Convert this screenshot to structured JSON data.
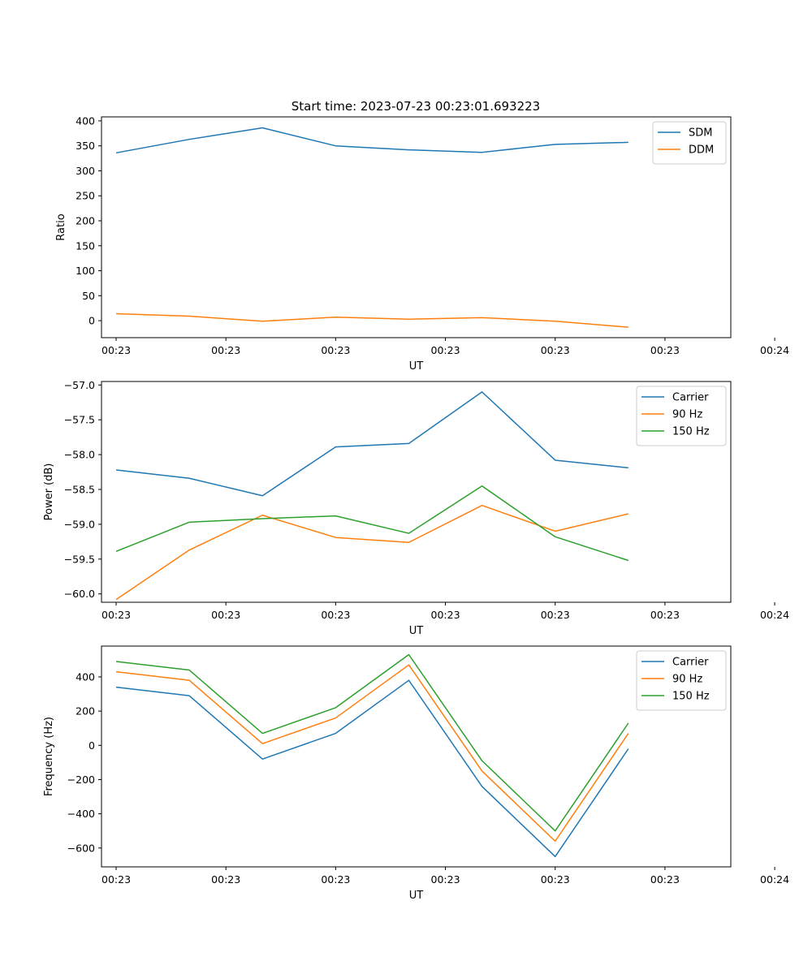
{
  "figure": {
    "title": "Start time: 2023-07-23 00:23:01.693223"
  },
  "chart_data": [
    {
      "type": "line",
      "xlabel": "UT",
      "ylabel": "Ratio",
      "x": [
        1,
        2,
        3,
        4,
        5,
        6,
        7,
        8
      ],
      "xlim": [
        0.8,
        9.4
      ],
      "xticks": [
        1,
        2.5,
        4,
        5.5,
        7,
        8.5,
        10
      ],
      "xtick_labels": [
        "00:23",
        "00:23",
        "00:23",
        "00:23",
        "00:23",
        "00:23",
        "00:24"
      ],
      "ylim": [
        -34,
        408
      ],
      "yticks": [
        0,
        50,
        100,
        150,
        200,
        250,
        300,
        350,
        400
      ],
      "ytick_labels": [
        "0",
        "50",
        "100",
        "150",
        "200",
        "250",
        "300",
        "350",
        "400"
      ],
      "legend_position": "top-right",
      "series": [
        {
          "name": "SDM",
          "color": "#1f77b4",
          "values": [
            336,
            363,
            386,
            350,
            342,
            337,
            353,
            357
          ]
        },
        {
          "name": "DDM",
          "color": "#ff7f0e",
          "values": [
            14,
            9,
            -1,
            7,
            3,
            6,
            -1,
            -13
          ]
        }
      ]
    },
    {
      "type": "line",
      "xlabel": "UT",
      "ylabel": "Power (dB)",
      "x": [
        1,
        2,
        3,
        4,
        5,
        6,
        7,
        8
      ],
      "xlim": [
        0.8,
        9.4
      ],
      "xticks": [
        1,
        2.5,
        4,
        5.5,
        7,
        8.5,
        10
      ],
      "xtick_labels": [
        "00:23",
        "00:23",
        "00:23",
        "00:23",
        "00:23",
        "00:23",
        "00:24"
      ],
      "ylim": [
        -60.12,
        -56.95
      ],
      "yticks": [
        -60.0,
        -59.5,
        -59.0,
        -58.5,
        -58.0,
        -57.5,
        -57.0
      ],
      "ytick_labels": [
        "−60.0",
        "−59.5",
        "−59.0",
        "−58.5",
        "−58.0",
        "−57.5",
        "−57.0"
      ],
      "legend_position": "top-right",
      "series": [
        {
          "name": "Carrier",
          "color": "#1f77b4",
          "values": [
            -58.22,
            -58.34,
            -58.59,
            -57.89,
            -57.84,
            -57.1,
            -58.08,
            -58.19
          ]
        },
        {
          "name": "90 Hz",
          "color": "#ff7f0e",
          "values": [
            -60.08,
            -59.37,
            -58.87,
            -59.19,
            -59.26,
            -58.73,
            -59.1,
            -58.85
          ]
        },
        {
          "name": "150 Hz",
          "color": "#2ca02c",
          "values": [
            -59.39,
            -58.97,
            -58.92,
            -58.88,
            -59.13,
            -58.45,
            -59.18,
            -59.52
          ]
        }
      ]
    },
    {
      "type": "line",
      "xlabel": "UT",
      "ylabel": "Frequency (Hz)",
      "x": [
        1,
        2,
        3,
        4,
        5,
        6,
        7,
        8
      ],
      "xlim": [
        0.8,
        9.4
      ],
      "xticks": [
        1,
        2.5,
        4,
        5.5,
        7,
        8.5,
        10
      ],
      "xtick_labels": [
        "00:23",
        "00:23",
        "00:23",
        "00:23",
        "00:23",
        "00:23",
        "00:24"
      ],
      "ylim": [
        -710,
        580
      ],
      "yticks": [
        -600,
        -400,
        -200,
        0,
        200,
        400
      ],
      "ytick_labels": [
        "−600",
        "−400",
        "−200",
        "0",
        "200",
        "400"
      ],
      "legend_position": "top-right",
      "series": [
        {
          "name": "Carrier",
          "color": "#1f77b4",
          "values": [
            340,
            290,
            -80,
            70,
            380,
            -240,
            -650,
            -20
          ]
        },
        {
          "name": "90 Hz",
          "color": "#ff7f0e",
          "values": [
            430,
            380,
            10,
            160,
            470,
            -150,
            -560,
            70
          ]
        },
        {
          "name": "150 Hz",
          "color": "#2ca02c",
          "values": [
            490,
            440,
            70,
            220,
            530,
            -90,
            -500,
            130
          ]
        }
      ]
    }
  ]
}
